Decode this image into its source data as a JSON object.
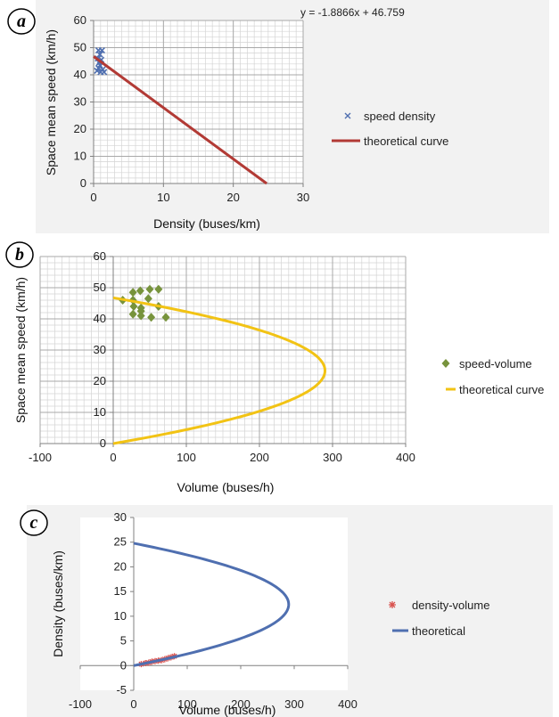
{
  "chart_data": [
    {
      "id": "a",
      "type": "scatter",
      "panel_label": "a",
      "xlabel": "Density (buses/km)",
      "ylabel": "Space mean speed (km/h)",
      "xlim": [
        0,
        30
      ],
      "ylim": [
        0,
        60
      ],
      "xticks": [
        0,
        10,
        20,
        30
      ],
      "yticks": [
        0,
        10,
        20,
        30,
        40,
        50,
        60
      ],
      "grid": true,
      "legend_position": "right",
      "annotation": "y = -1.8866x + 46.759",
      "series": [
        {
          "name": "speed density",
          "kind": "scatter",
          "marker": "x",
          "color": "#4f6fb0",
          "points": [
            [
              0.7,
              49
            ],
            [
              1.2,
              49
            ],
            [
              0.9,
              47.5
            ],
            [
              0.6,
              46
            ],
            [
              1.1,
              45.5
            ],
            [
              0.8,
              44.5
            ],
            [
              0.9,
              43.5
            ],
            [
              0.7,
              42.5
            ],
            [
              1.3,
              42
            ],
            [
              0.5,
              41.5
            ],
            [
              1.0,
              41
            ],
            [
              1.5,
              41
            ]
          ]
        },
        {
          "name": "theoretical curve",
          "kind": "line",
          "color": "#b23a35",
          "points": [
            [
              0,
              46.759
            ],
            [
              24.78,
              0
            ]
          ]
        }
      ]
    },
    {
      "id": "b",
      "type": "scatter",
      "panel_label": "b",
      "xlabel": "Volume (buses/h)",
      "ylabel": "Space mean speed (km/h)",
      "xlim": [
        -100,
        400
      ],
      "ylim": [
        0,
        60
      ],
      "xticks": [
        -100,
        0,
        100,
        200,
        300,
        400
      ],
      "yticks": [
        0,
        10,
        20,
        30,
        40,
        50,
        60
      ],
      "grid": true,
      "legend_position": "right",
      "series": [
        {
          "name": "speed-volume",
          "kind": "scatter",
          "marker": "diamond",
          "color": "#77933c",
          "points": [
            [
              13,
              46
            ],
            [
              27,
              48.5
            ],
            [
              37,
              49
            ],
            [
              50,
              49.5
            ],
            [
              62,
              49.5
            ],
            [
              27,
              46
            ],
            [
              48,
              46.5
            ],
            [
              62,
              44
            ],
            [
              28,
              44
            ],
            [
              38,
              43.5
            ],
            [
              38,
              42.5
            ],
            [
              27,
              41.5
            ],
            [
              38,
              41
            ],
            [
              52,
              40.5
            ],
            [
              72,
              40.5
            ]
          ]
        },
        {
          "name": "theoretical curve",
          "kind": "curve",
          "color": "#f2c314",
          "model": "q = k_j * v * (1 - v / v_f)",
          "v_f": 46.759,
          "k_j": 24.78
        }
      ]
    },
    {
      "id": "c",
      "type": "scatter",
      "panel_label": "c",
      "xlabel": "Volume (buses/h)",
      "ylabel": "Density (buses/km)",
      "xlim": [
        -100,
        400
      ],
      "ylim": [
        -5,
        30
      ],
      "xticks": [
        -100,
        0,
        100,
        200,
        300,
        400
      ],
      "yticks": [
        -5,
        0,
        5,
        10,
        15,
        20,
        25,
        30
      ],
      "grid": false,
      "legend_position": "right",
      "series": [
        {
          "name": "density-volume",
          "kind": "scatter",
          "marker": "asterisk",
          "color": "#d9534f",
          "points": [
            [
              14,
              0.3
            ],
            [
              22,
              0.5
            ],
            [
              28,
              0.6
            ],
            [
              34,
              0.8
            ],
            [
              40,
              0.9
            ],
            [
              46,
              1.0
            ],
            [
              52,
              1.1
            ],
            [
              58,
              1.3
            ],
            [
              64,
              1.5
            ],
            [
              70,
              1.7
            ],
            [
              76,
              1.9
            ]
          ]
        },
        {
          "name": "theoretical",
          "kind": "curve",
          "color": "#4f6fb0",
          "model": "q = k * v_f * (1 - k / k_j)",
          "v_f": 46.759,
          "k_j": 24.78
        }
      ]
    }
  ]
}
